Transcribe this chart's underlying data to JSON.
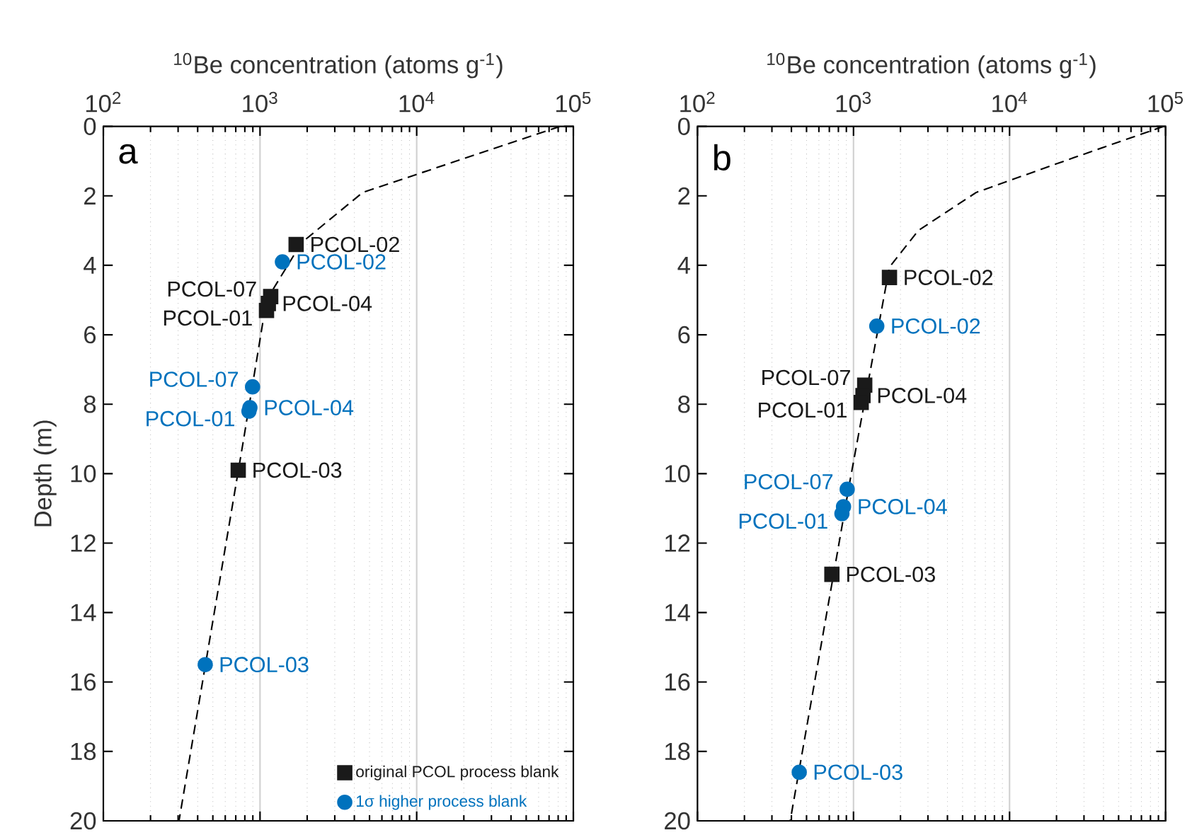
{
  "chart_data": [
    {
      "type": "scatter",
      "xlabel": "$^{10}$Be concentration (atoms g$^{-1}$)",
      "ylabel": "Depth (m)",
      "annotations": [
        "a"
      ],
      "xlim": [
        100,
        100000
      ],
      "ylim": [
        20,
        0
      ],
      "log": "x",
      "grid": "x",
      "legend": "bottom right",
      "xticks": [
        {
          "value": 100,
          "label": "10$^{2}$"
        },
        {
          "value": 1000,
          "label": "10$^{3}$"
        },
        {
          "value": 10000,
          "label": "10$^{4}$"
        },
        {
          "value": 100000,
          "label": "10$^{5}$"
        }
      ],
      "yticks": [
        0,
        2,
        4,
        6,
        8,
        10,
        12,
        14,
        16,
        18,
        20
      ],
      "series": [
        {
          "type": "line",
          "color": "#000000",
          "line_style": "dashed",
          "marker": "none",
          "x": [
            82000,
            4530,
            1840,
            1100,
            780,
            304
          ],
          "values": [
            0,
            1.9,
            3.35,
            5.0,
            9.1,
            20
          ]
        },
        {
          "name": "original PCOL process blank",
          "color": "#1a1a1a",
          "marker": "square",
          "x": [
            1700,
            1170,
            1130,
            1100,
            726
          ],
          "values": [
            3.4,
            4.9,
            5.1,
            5.3,
            9.9
          ],
          "value_labels": [
            "PCOL-02",
            "PCOL-07",
            "PCOL-04",
            "PCOL-01",
            "PCOL-03"
          ]
        },
        {
          "name": "1σ higher process blank",
          "color": "#0072bd",
          "marker": "circle",
          "x": [
            1390,
            896,
            862,
            850,
            447
          ],
          "values": [
            3.9,
            7.5,
            8.1,
            8.2,
            15.5
          ],
          "value_labels": [
            "PCOL-02",
            "PCOL-07",
            "PCOL-04",
            "PCOL-01",
            "PCOL-03"
          ]
        }
      ]
    },
    {
      "type": "scatter",
      "xlabel": "$^{10}$Be concentration (atoms g$^{-1}$)",
      "annotations": [
        "b"
      ],
      "xlim": [
        100,
        100000
      ],
      "ylim": [
        20,
        0
      ],
      "log": "x",
      "grid": "x",
      "xticks": [
        {
          "value": 100,
          "label": "10$^{2}$"
        },
        {
          "value": 1000,
          "label": "10$^{3}$"
        },
        {
          "value": 10000,
          "label": "10$^{4}$"
        },
        {
          "value": 100000,
          "label": "10$^{5}$"
        }
      ],
      "yticks": [
        0,
        2,
        4,
        6,
        8,
        10,
        12,
        14,
        16,
        18,
        20
      ],
      "series": [
        {
          "type": "line",
          "color": "#000000",
          "line_style": "dashed",
          "marker": "none",
          "x": [
            97000,
            25800,
            6120,
            2600,
            1700,
            950,
            393
          ],
          "values": [
            0,
            0.9,
            1.9,
            3.0,
            4.05,
            10.2,
            20
          ]
        },
        {
          "color": "#1a1a1a",
          "marker": "square",
          "x": [
            1700,
            1180,
            1150,
            1120,
            727
          ],
          "values": [
            4.35,
            7.45,
            7.75,
            7.95,
            12.9
          ],
          "value_labels": [
            "PCOL-02",
            "PCOL-07",
            "PCOL-04",
            "PCOL-01",
            "PCOL-03"
          ]
        },
        {
          "color": "#0072bd",
          "marker": "circle",
          "x": [
            1410,
            911,
            863,
            843,
            449
          ],
          "values": [
            5.75,
            10.45,
            10.95,
            11.15,
            18.6
          ],
          "value_labels": [
            "PCOL-02",
            "PCOL-07",
            "PCOL-04",
            "PCOL-01",
            "PCOL-03"
          ]
        }
      ]
    }
  ]
}
